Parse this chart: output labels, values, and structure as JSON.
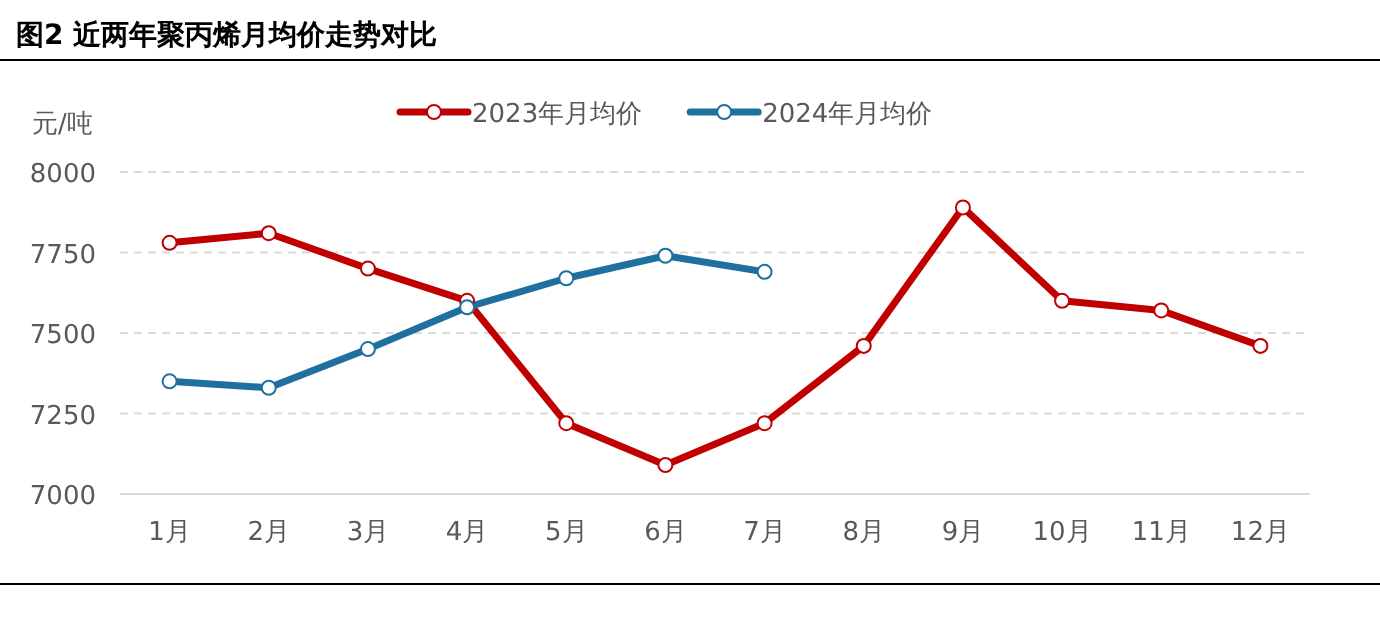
{
  "chart_data": {
    "type": "line",
    "title": "图2 近两年聚丙烯月均价走势对比",
    "ylabel": "元/吨",
    "categories": [
      "1月",
      "2月",
      "3月",
      "4月",
      "5月",
      "6月",
      "7月",
      "8月",
      "9月",
      "10月",
      "11月",
      "12月"
    ],
    "series": [
      {
        "name": "2023年月均价",
        "color": "#c00000",
        "values": [
          7780,
          7810,
          7700,
          7600,
          7220,
          7090,
          7220,
          7460,
          7890,
          7600,
          7570,
          7460
        ]
      },
      {
        "name": "2024年月均价",
        "color": "#1f6f9f",
        "values": [
          7350,
          7330,
          7450,
          7580,
          7670,
          7740,
          7690,
          null,
          null,
          null,
          null,
          null
        ]
      }
    ],
    "ylim": [
      7000,
      8000
    ],
    "yticks": [
      7000,
      7250,
      7500,
      7750,
      8000
    ],
    "grid": "y",
    "legend": "top",
    "marker": "circle",
    "line_style": "solid"
  }
}
